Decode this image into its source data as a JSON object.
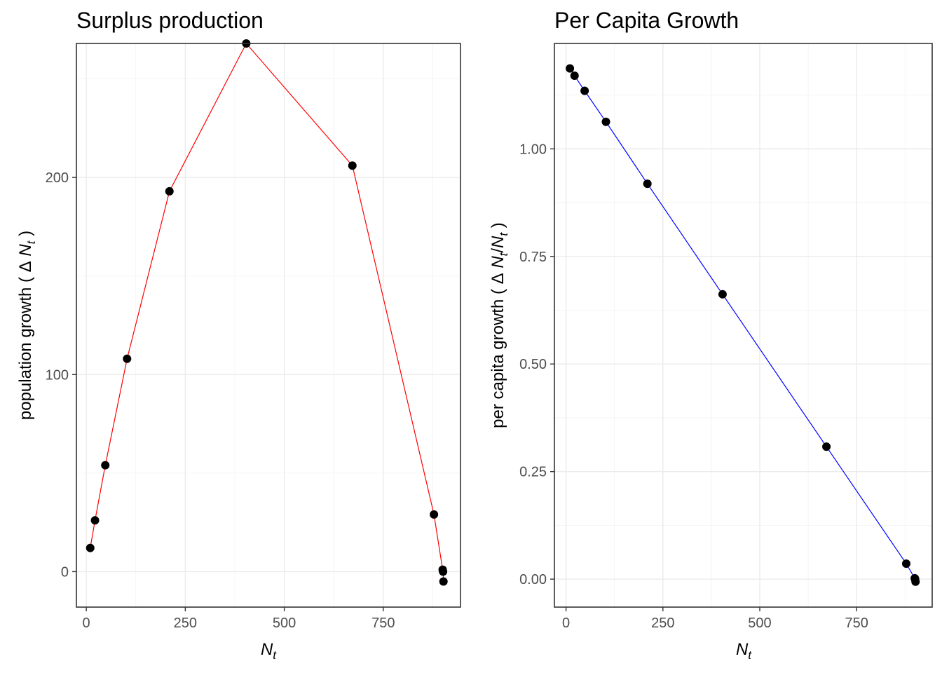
{
  "chart_data": [
    {
      "type": "line",
      "title": "Surplus production",
      "xlabel_main": "N",
      "xlabel_sub": "t",
      "ylabel_prefix": "population growth ( ",
      "ylabel_delta": "Δ",
      "ylabel_main": " N",
      "ylabel_sub": "t",
      "ylabel_suffix": " )",
      "xlim": [
        -25,
        945
      ],
      "ylim": [
        -18,
        268
      ],
      "x_ticks": [
        0,
        250,
        500,
        750
      ],
      "x_tick_labels": [
        "0",
        "250",
        "500",
        "750"
      ],
      "y_ticks": [
        0,
        100,
        200
      ],
      "y_tick_labels": [
        "0",
        "100",
        "200"
      ],
      "grid": true,
      "line_color": "#ff0000",
      "point_color": "#000000",
      "series": [
        {
          "x": [
            10,
            22,
            48,
            103,
            210,
            404,
            672,
            878,
            900,
            901,
            902
          ],
          "y": [
            12,
            26,
            54,
            108,
            193,
            268,
            206,
            29,
            1,
            0,
            -5
          ]
        }
      ]
    },
    {
      "type": "line",
      "title": "Per Capita Growth",
      "xlabel_main": "N",
      "xlabel_sub": "t",
      "ylabel_prefix": "per capita growth ( ",
      "ylabel_delta": "Δ",
      "ylabel_main": " N",
      "ylabel_sub": "t",
      "ylabel_slash": "/",
      "ylabel_main2": "N",
      "ylabel_sub2": "t",
      "ylabel_suffix": " )",
      "xlim": [
        -30,
        945
      ],
      "ylim": [
        -0.065,
        1.245
      ],
      "x_ticks": [
        0,
        250,
        500,
        750
      ],
      "x_tick_labels": [
        "0",
        "250",
        "500",
        "750"
      ],
      "y_ticks": [
        0.0,
        0.25,
        0.5,
        0.75,
        1.0
      ],
      "y_tick_labels": [
        "0.00",
        "0.25",
        "0.50",
        "0.75",
        "1.00"
      ],
      "grid": true,
      "line_color": "#0000ff",
      "point_color": "#000000",
      "series": [
        {
          "x": [
            10,
            22,
            48,
            103,
            210,
            404,
            672,
            878,
            900,
            901,
            902
          ],
          "y": [
            1.187,
            1.17,
            1.135,
            1.063,
            0.919,
            0.662,
            0.308,
            0.036,
            0.002,
            0.0,
            -0.006
          ]
        }
      ]
    }
  ]
}
